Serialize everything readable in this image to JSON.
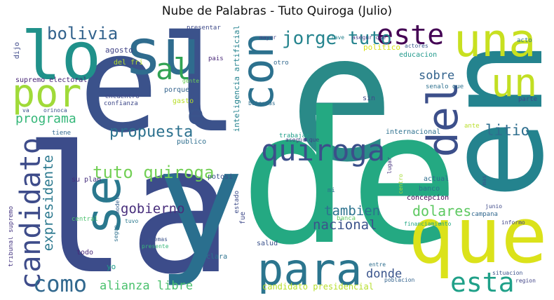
{
  "title": "Nube de Palabras - Tuto Quiroga (Julio)",
  "words": [
    {
      "text": "e",
      "color": "#2a8a88"
    },
    {
      "text": "la",
      "color": "#3c4c8a"
    },
    {
      "text": "de",
      "color": "#24a982"
    },
    {
      "text": "el",
      "color": "#3b528b"
    },
    {
      "text": "en",
      "color": "#24838e"
    },
    {
      "text": "y",
      "color": "#2a6f8e"
    },
    {
      "text": "que",
      "color": "#dbe21a"
    },
    {
      "text": "lo",
      "color": "#20918a"
    },
    {
      "text": "su",
      "color": "#2f6c8e"
    },
    {
      "text": "una",
      "color": "#c8e020"
    },
    {
      "text": "del",
      "color": "#3c4f8a"
    },
    {
      "text": "con",
      "color": "#2c718e"
    },
    {
      "text": "un",
      "color": "#c2df23"
    },
    {
      "text": "por",
      "color": "#a0da39"
    },
    {
      "text": "se",
      "color": "#2a788e"
    },
    {
      "text": "para",
      "color": "#2b758e"
    },
    {
      "text": "al",
      "color": "#31a354"
    },
    {
      "text": "este",
      "color": "#440154"
    },
    {
      "text": "quiroga",
      "color": "#3b4f8a"
    },
    {
      "text": "candidato",
      "color": "#3e4c8a"
    },
    {
      "text": "e",
      "color": "#3a548c"
    },
    {
      "text": "esta",
      "color": "#1fa088"
    },
    {
      "text": "como",
      "color": "#31688e"
    },
    {
      "text": "jorge tuto",
      "color": "#25848e"
    },
    {
      "text": "bolivia",
      "color": "#33638d"
    },
    {
      "text": "tuto quiroga",
      "color": "#73d056"
    },
    {
      "text": "propuesta",
      "color": "#2c718e"
    },
    {
      "text": "programa",
      "color": "#35b779"
    },
    {
      "text": "expresidente",
      "color": "#2a788e"
    },
    {
      "text": "gobierno",
      "color": "#472d7b"
    },
    {
      "text": "alianza libre",
      "color": "#4ac16d"
    },
    {
      "text": "nacional",
      "color": "#3b528b"
    },
    {
      "text": "tambien",
      "color": "#2c728e"
    },
    {
      "text": "sobre",
      "color": "#33638d"
    },
    {
      "text": "litio",
      "color": "#2e6e8e"
    },
    {
      "text": "dolares",
      "color": "#5ec962"
    },
    {
      "text": "donde",
      "color": "#3a548c"
    },
    {
      "text": "agosto",
      "color": "#414487"
    },
    {
      "text": "dijo",
      "color": "#3e4989"
    },
    {
      "text": "supremo electoral",
      "color": "#482576"
    },
    {
      "text": "del fri",
      "color": "#b5de2b"
    },
    {
      "text": "encuentro",
      "color": "#3e4989"
    },
    {
      "text": "confianza",
      "color": "#3e4989"
    },
    {
      "text": "porque",
      "color": "#33638d"
    },
    {
      "text": "gasto",
      "color": "#b8de29"
    },
    {
      "text": "gente",
      "color": "#6ccd5a"
    },
    {
      "text": "pais",
      "color": "#482878"
    },
    {
      "text": "inteligencia artificial",
      "color": "#25838e"
    },
    {
      "text": "presentar",
      "color": "#3e4a89"
    },
    {
      "text": "mayor",
      "color": "#414487"
    },
    {
      "text": "clave",
      "color": "#26828e"
    },
    {
      "text": "asegur que",
      "color": "#433e85"
    },
    {
      "text": "politico",
      "color": "#d8e219"
    },
    {
      "text": "actores",
      "color": "#38598c"
    },
    {
      "text": "educacion",
      "color": "#1f988b"
    },
    {
      "text": "otro",
      "color": "#31688e"
    },
    {
      "text": "acto",
      "color": "#2a788e"
    },
    {
      "text": "senalo que",
      "color": "#2d708e"
    },
    {
      "text": "parte",
      "color": "#3e4a89"
    },
    {
      "text": "baterias",
      "color": "#2e6e8e"
    },
    {
      "text": "sin",
      "color": "#3e4989"
    },
    {
      "text": "ante",
      "color": "#b8de29"
    },
    {
      "text": "internacional",
      "color": "#2d708e"
    },
    {
      "text": "trabajar",
      "color": "#1f9e89"
    },
    {
      "text": "asegur que",
      "color": "#433e85"
    },
    {
      "text": "lugar",
      "color": "#46337e"
    },
    {
      "text": "centro",
      "color": "#a5db36"
    },
    {
      "text": "electoral",
      "color": "#25858e"
    },
    {
      "text": "va",
      "color": "#3b528b"
    },
    {
      "text": "orinoca",
      "color": "#3b528b"
    },
    {
      "text": "tiene",
      "color": "#31688e"
    },
    {
      "text": "publico",
      "color": "#2e6e8e"
    },
    {
      "text": "su plan",
      "color": "#472f7d"
    },
    {
      "text": "modelo",
      "color": "#35608d"
    },
    {
      "text": "potosi",
      "color": "#3b528b"
    },
    {
      "text": "estado",
      "color": "#3e4c8a"
    },
    {
      "text": "tribunal supremo",
      "color": "#453581"
    },
    {
      "text": "central",
      "color": "#4ac16d"
    },
    {
      "text": "tuvo",
      "color": "#2a788e"
    },
    {
      "text": "segun",
      "color": "#2d708e"
    },
    {
      "text": "fue",
      "color": "#3e4989"
    },
    {
      "text": "mi",
      "color": "#2d708e"
    },
    {
      "text": "banca",
      "color": "#5ec962"
    },
    {
      "text": "banco",
      "color": "#2c728e"
    },
    {
      "text": "actual",
      "color": "#2e6e8e"
    },
    {
      "text": "concepcion",
      "color": "#440154"
    },
    {
      "text": "mas",
      "color": "#3b528b"
    },
    {
      "text": "junio",
      "color": "#3e4989"
    },
    {
      "text": "campana",
      "color": "#31688e"
    },
    {
      "text": "informo",
      "color": "#414487"
    },
    {
      "text": "financiamiento",
      "color": "#22a785"
    },
    {
      "text": "todo",
      "color": "#482878"
    },
    {
      "text": "ademas",
      "color": "#3b528b"
    },
    {
      "text": "presente",
      "color": "#35b779"
    },
    {
      "text": "salud",
      "color": "#3b528b"
    },
    {
      "text": "clara",
      "color": "#2c728e"
    },
    {
      "text": "yo",
      "color": "#1f9e89"
    },
    {
      "text": "entre",
      "color": "#2e6e8e"
    },
    {
      "text": "poblacion",
      "color": "#33638d"
    },
    {
      "text": "situacion",
      "color": "#3b528b"
    },
    {
      "text": "region",
      "color": "#414487"
    },
    {
      "text": "candidato presidencial",
      "color": "#b5de2b"
    }
  ]
}
